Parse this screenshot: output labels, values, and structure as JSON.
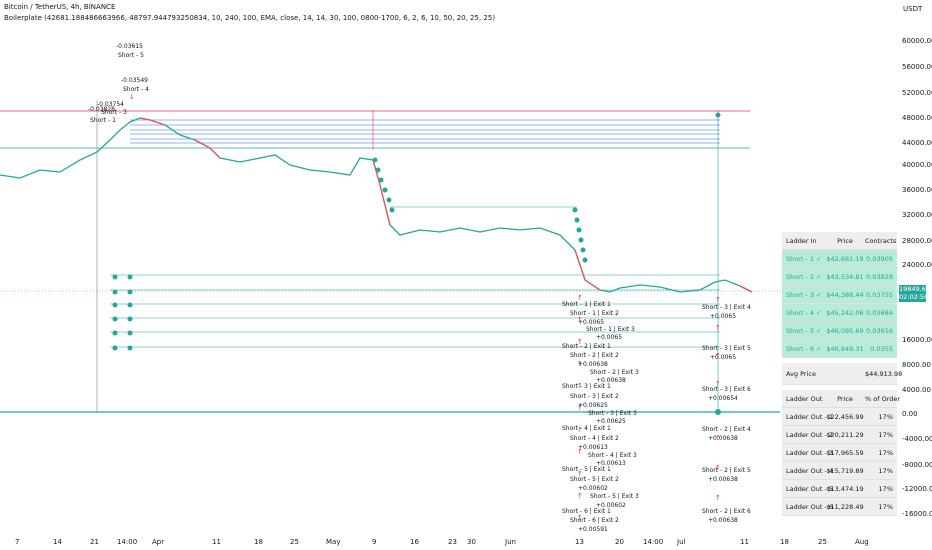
{
  "header": {
    "title": "Bitcoin / TetherUS, 4h, BINANCE",
    "indicator": "Boilerplate (42681.188486663966, 48797.944793250834, 10, 240, 100, EMA, close, 14, 14, 30, 100, 0800-1700, 6, 2, 6, 10, 50, 20, 25, 25)"
  },
  "price_axis": {
    "unit": "USDT",
    "labels": [
      "60000.00",
      "56000.00",
      "52000.00",
      "48000.00",
      "44000.00",
      "40000.00",
      "36000.00",
      "32000.00",
      "28000.00",
      "24000.00",
      "20000.00",
      "16000.00",
      "12000.00",
      "8000.00",
      "4000.00",
      "0.00",
      "-4000.00",
      "-8000.00",
      "-12000.00",
      "-16000.00"
    ],
    "current_price": "19849.62",
    "countdown": "02:02:56"
  },
  "time_axis": {
    "labels": [
      "7",
      "14",
      "21",
      "14:00",
      "Apr",
      "11",
      "18",
      "25",
      "May",
      "9",
      "16",
      "23",
      "30",
      "Jun",
      "13",
      "20",
      "14:00",
      "Jul",
      "11",
      "18",
      "25",
      "Aug"
    ]
  },
  "chart_annotations": {
    "top_short": [
      "-0.03615",
      "Short - 5",
      "-0.03549",
      "Short - 4",
      "-0.03754",
      "Short - 3",
      "-0.03828",
      "Short - 1"
    ],
    "exit_labels": [
      "Short - 1 | Exit 1",
      "Short - 1 | Exit 2",
      "+0.0065",
      "Short - 1 | Exit 3",
      "+0.0065",
      "Short - 2 | Exit 1",
      "Short - 2 | Exit 2",
      "+0.00638",
      "Short - 2 | Exit 3",
      "+0.00638",
      "Short - 3 | Exit 1",
      "Short - 3 | Exit 2",
      "+0.00625",
      "Short - 3 | Exit 3",
      "+0.00625",
      "Short - 4 | Exit 1",
      "Short - 4 | Exit 2",
      "+0.00613",
      "Short - 4 | Exit 3",
      "+0.00613",
      "Short - 5 | Exit 1",
      "Short - 5 | Exit 2",
      "+0.00602",
      "Short - 5 | Exit 3",
      "+0.00602",
      "Short - 6 | Exit 1",
      "Short - 6 | Exit 2",
      "+0.00591"
    ],
    "right_exits": [
      "Short - 3 | Exit 4",
      "+0.0065",
      "Short - 3 | Exit 5",
      "+0.0065",
      "Short - 3 | Exit 6",
      "+0.00654",
      "Short - 2 | Exit 4",
      "+0.00638",
      "Short - 2 | Exit 5",
      "+0.00638",
      "Short - 2 | Exit 6",
      "+0.00638"
    ]
  },
  "ladder_in": {
    "headers": [
      "Ladder In",
      "Price",
      "Contracts"
    ],
    "rows": [
      [
        "Short - 1 ✓",
        "$42,681.19",
        "0.03905"
      ],
      [
        "Short - 2 ✓",
        "$43,534.81",
        "0.03828"
      ],
      [
        "Short - 3 ✓",
        "$44,388.44",
        "0.03755"
      ],
      [
        "Short - 4 ✓",
        "$45,242.06",
        "0.03684"
      ],
      [
        "Short - 5 ✓",
        "$46,095.69",
        "0.03616"
      ],
      [
        "Short - 6 ✓",
        "$46,949.31",
        "0.0355"
      ]
    ]
  },
  "avg_price": {
    "label": "Avg Price",
    "value": "$44,913.98"
  },
  "ladder_out": {
    "headers": [
      "Ladder Out",
      "Price",
      "% of Order"
    ],
    "rows": [
      [
        "Ladder Out - 1",
        "$22,456.99",
        "17%"
      ],
      [
        "Ladder Out - 2",
        "$20,211.29",
        "17%"
      ],
      [
        "Ladder Out - 3",
        "$17,965.59",
        "17%"
      ],
      [
        "Ladder Out - 4",
        "$15,719.89",
        "17%"
      ],
      [
        "Ladder Out - 5",
        "$13,474.19",
        "17%"
      ],
      [
        "Ladder Out - 6",
        "$11,228.49",
        "17%"
      ]
    ]
  },
  "colors": {
    "up": "#26a69a",
    "down": "#ef5350",
    "entry_line": "#2962ff",
    "target_line": "#26a69a",
    "exit_marker": "#e91e63",
    "resistance": "#f23645"
  }
}
